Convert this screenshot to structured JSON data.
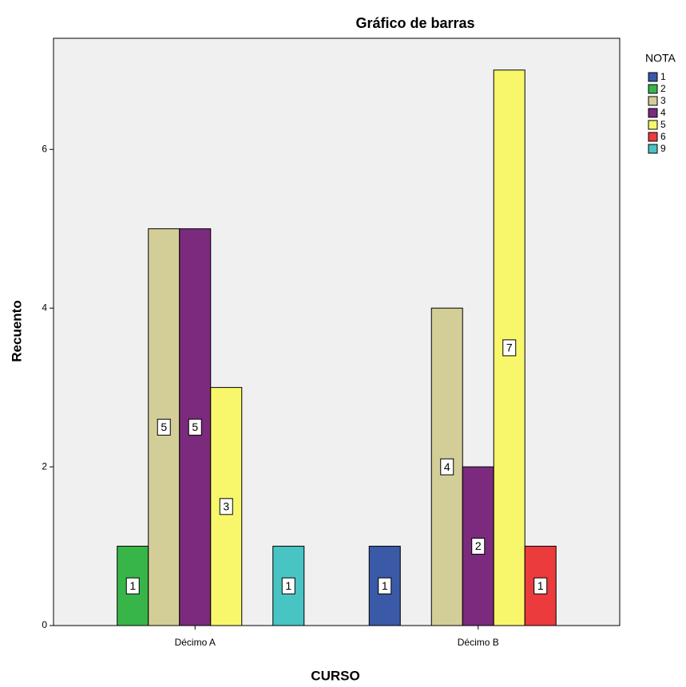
{
  "chart_data": {
    "type": "bar",
    "title": "Gráfico de barras",
    "x_label": "CURSO",
    "y_label": "Recuento",
    "legend_title": "NOTA",
    "categories": [
      "Décimo A",
      "Décimo B"
    ],
    "series": [
      {
        "name": "1",
        "color": "#3a59a6",
        "values": [
          null,
          1
        ]
      },
      {
        "name": "2",
        "color": "#38b549",
        "values": [
          1,
          null
        ]
      },
      {
        "name": "3",
        "color": "#d3ce97",
        "values": [
          5,
          4
        ]
      },
      {
        "name": "4",
        "color": "#7b2a7d",
        "values": [
          5,
          2
        ]
      },
      {
        "name": "5",
        "color": "#f8f76b",
        "values": [
          3,
          7
        ]
      },
      {
        "name": "6",
        "color": "#eb3b3c",
        "values": [
          null,
          1
        ]
      },
      {
        "name": "9",
        "color": "#48c4c4",
        "values": [
          1,
          null
        ]
      }
    ],
    "ylim": [
      0,
      7.4
    ],
    "yticks": [
      0,
      2,
      4,
      6
    ],
    "legend_position": "right"
  }
}
